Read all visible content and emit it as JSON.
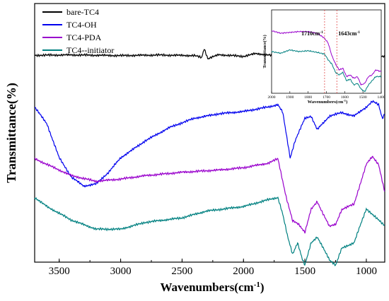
{
  "chart_data": [
    {
      "type": "line",
      "xlabel": "Wavenumbers(cm",
      "xlabel_sup": "-1",
      "xlabel_end": ")",
      "ylabel": "Transmittance(%)",
      "xlim": [
        3700,
        850
      ],
      "x_reversed": true,
      "xticks": [
        3500,
        3000,
        2500,
        2000,
        1500,
        1000
      ],
      "xtick_labels": [
        "3500",
        "3000",
        "2500",
        "2000",
        "1500",
        "1000"
      ],
      "y_ticks_shown": false,
      "grid": false,
      "legend_position": "top-left",
      "series": [
        {
          "name": "bare-TC4",
          "color": "#000000",
          "baseline": 0.8,
          "points": [
            [
              3700,
              0
            ],
            [
              3400,
              0.3
            ],
            [
              3000,
              -0.3
            ],
            [
              2700,
              0.2
            ],
            [
              2400,
              -0.3
            ],
            [
              2340,
              -2
            ],
            [
              2320,
              6
            ],
            [
              2290,
              -3
            ],
            [
              2200,
              0.5
            ],
            [
              2000,
              -1
            ],
            [
              1900,
              1.5
            ],
            [
              1700,
              -1
            ],
            [
              1500,
              1
            ],
            [
              1200,
              -0.5
            ],
            [
              1050,
              1
            ],
            [
              900,
              -1.5
            ],
            [
              850,
              -1
            ]
          ]
        },
        {
          "name": "TC4-OH",
          "color": "#0000ee",
          "baseline": 0.6,
          "points": [
            [
              3700,
              0
            ],
            [
              3600,
              -15
            ],
            [
              3500,
              -45
            ],
            [
              3400,
              -62
            ],
            [
              3300,
              -70
            ],
            [
              3200,
              -68
            ],
            [
              3100,
              -58
            ],
            [
              3000,
              -45
            ],
            [
              2800,
              -30
            ],
            [
              2600,
              -18
            ],
            [
              2400,
              -10
            ],
            [
              2200,
              -6
            ],
            [
              2000,
              -4
            ],
            [
              1800,
              0
            ],
            [
              1720,
              2
            ],
            [
              1680,
              -5
            ],
            [
              1650,
              -25
            ],
            [
              1620,
              -45
            ],
            [
              1580,
              -30
            ],
            [
              1500,
              -10
            ],
            [
              1450,
              -8
            ],
            [
              1400,
              -20
            ],
            [
              1300,
              -8
            ],
            [
              1200,
              -5
            ],
            [
              1100,
              -8
            ],
            [
              1000,
              0
            ],
            [
              950,
              5
            ],
            [
              900,
              2
            ],
            [
              870,
              -10
            ],
            [
              850,
              -6
            ]
          ]
        },
        {
          "name": "TC4-PDA",
          "color": "#9900cc",
          "baseline": 0.4,
          "points": [
            [
              3700,
              0
            ],
            [
              3600,
              -5
            ],
            [
              3400,
              -15
            ],
            [
              3200,
              -20
            ],
            [
              3000,
              -18
            ],
            [
              2800,
              -15
            ],
            [
              2500,
              -12
            ],
            [
              2200,
              -10
            ],
            [
              2000,
              -8
            ],
            [
              1800,
              -4
            ],
            [
              1720,
              0
            ],
            [
              1700,
              -10
            ],
            [
              1650,
              -35
            ],
            [
              1600,
              -55
            ],
            [
              1550,
              -58
            ],
            [
              1500,
              -65
            ],
            [
              1450,
              -45
            ],
            [
              1400,
              -38
            ],
            [
              1300,
              -60
            ],
            [
              1250,
              -58
            ],
            [
              1200,
              -45
            ],
            [
              1100,
              -40
            ],
            [
              1000,
              -5
            ],
            [
              950,
              2
            ],
            [
              900,
              -5
            ],
            [
              850,
              -30
            ]
          ]
        },
        {
          "name": "TC4--initiator",
          "color": "#008080",
          "baseline": 0.25,
          "points": [
            [
              3700,
              0
            ],
            [
              3600,
              -8
            ],
            [
              3400,
              -20
            ],
            [
              3200,
              -28
            ],
            [
              3000,
              -28
            ],
            [
              2800,
              -22
            ],
            [
              2500,
              -18
            ],
            [
              2300,
              -12
            ],
            [
              2000,
              -8
            ],
            [
              1800,
              -2
            ],
            [
              1720,
              0
            ],
            [
              1680,
              -15
            ],
            [
              1640,
              -35
            ],
            [
              1600,
              -50
            ],
            [
              1560,
              -40
            ],
            [
              1520,
              -55
            ],
            [
              1500,
              -60
            ],
            [
              1450,
              -40
            ],
            [
              1400,
              -35
            ],
            [
              1300,
              -55
            ],
            [
              1250,
              -60
            ],
            [
              1200,
              -45
            ],
            [
              1100,
              -40
            ],
            [
              1000,
              -10
            ],
            [
              950,
              -15
            ],
            [
              900,
              -20
            ],
            [
              850,
              -25
            ]
          ]
        }
      ]
    },
    {
      "type": "line",
      "role": "inset",
      "xlabel": "Wavenumbers(cm",
      "xlabel_sup": "-1",
      "xlabel_end": ")",
      "ylabel": "Transmittance(%)",
      "xlim": [
        2000,
        1400
      ],
      "x_reversed": true,
      "xticks": [
        2000,
        1900,
        1800,
        1700,
        1600,
        1500,
        1400
      ],
      "xtick_labels": [
        "2000",
        "1900",
        "1800",
        "1700",
        "1600",
        "1500",
        "1400"
      ],
      "y_ticks_shown": false,
      "grid": false,
      "annotations": [
        {
          "text": "1710cm",
          "sup": "-1",
          "x": 1710
        },
        {
          "text": "1643cm",
          "sup": "-1",
          "x": 1643
        }
      ],
      "series": [
        {
          "color": "#9900cc",
          "points": [
            [
              2000,
              0.75
            ],
            [
              1950,
              0.72
            ],
            [
              1900,
              0.73
            ],
            [
              1850,
              0.74
            ],
            [
              1800,
              0.74
            ],
            [
              1750,
              0.72
            ],
            [
              1710,
              0.66
            ],
            [
              1690,
              0.6
            ],
            [
              1670,
              0.45
            ],
            [
              1650,
              0.35
            ],
            [
              1630,
              0.28
            ],
            [
              1610,
              0.3
            ],
            [
              1590,
              0.2
            ],
            [
              1570,
              0.22
            ],
            [
              1550,
              0.18
            ],
            [
              1530,
              0.2
            ],
            [
              1510,
              0.1
            ],
            [
              1490,
              0.12
            ],
            [
              1470,
              0.2
            ],
            [
              1450,
              0.22
            ],
            [
              1430,
              0.28
            ],
            [
              1400,
              0.26
            ]
          ]
        },
        {
          "color": "#008080",
          "points": [
            [
              2000,
              0.5
            ],
            [
              1950,
              0.48
            ],
            [
              1900,
              0.52
            ],
            [
              1850,
              0.5
            ],
            [
              1800,
              0.51
            ],
            [
              1750,
              0.49
            ],
            [
              1710,
              0.47
            ],
            [
              1690,
              0.4
            ],
            [
              1670,
              0.35
            ],
            [
              1650,
              0.25
            ],
            [
              1630,
              0.22
            ],
            [
              1610,
              0.25
            ],
            [
              1590,
              0.15
            ],
            [
              1570,
              0.17
            ],
            [
              1550,
              0.1
            ],
            [
              1530,
              0.12
            ],
            [
              1510,
              0.05
            ],
            [
              1490,
              0.02
            ],
            [
              1470,
              0.1
            ],
            [
              1450,
              0.15
            ],
            [
              1430,
              0.2
            ],
            [
              1400,
              0.2
            ]
          ]
        }
      ]
    }
  ]
}
